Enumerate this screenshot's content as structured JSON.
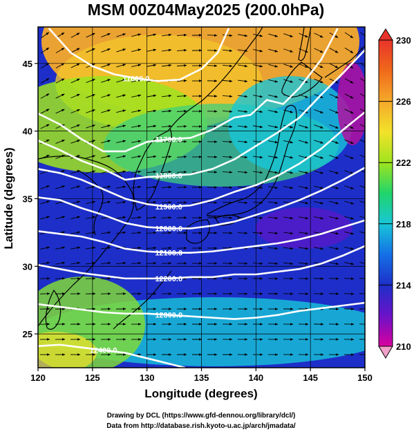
{
  "chart_data": {
    "type": "heatmap",
    "title": "MSM 00Z04May2025 (200.0hPa)",
    "xlabel": "Longitude (degrees)",
    "ylabel": "Latitude  (degrees)",
    "xlim": [
      120,
      150
    ],
    "ylim": [
      22.5,
      47.7
    ],
    "x_ticks": [
      120,
      125,
      130,
      135,
      140,
      145,
      150
    ],
    "y_ticks": [
      25,
      30,
      35,
      40,
      45
    ],
    "colorbar": {
      "range": [
        210,
        230
      ],
      "ticks": [
        210,
        214,
        218,
        222,
        226,
        230
      ],
      "colors": [
        "#d9009f",
        "#6b12c8",
        "#1d2fc8",
        "#1470e6",
        "#18c6d8",
        "#1fd56a",
        "#9fe41e",
        "#f2e22a",
        "#f5a92a",
        "#f06a1a",
        "#e8342a"
      ]
    },
    "contours": [
      {
        "label": "11600.0",
        "points": [
          [
            121,
            47.6
          ],
          [
            123,
            45.8
          ],
          [
            125,
            44.8
          ],
          [
            127,
            44.2
          ],
          [
            129,
            43.9
          ],
          [
            131,
            43.7
          ],
          [
            133,
            43.8
          ],
          [
            135,
            44.6
          ],
          [
            136.5,
            45.8
          ],
          [
            137.5,
            47.6
          ]
        ]
      },
      {
        "label": "11700.0",
        "points": [
          [
            120,
            41.3
          ],
          [
            122,
            40.5
          ],
          [
            124,
            39.4
          ],
          [
            126,
            38.5
          ],
          [
            128,
            38.5
          ],
          [
            130,
            39.2
          ],
          [
            132,
            39.4
          ],
          [
            134,
            39.5
          ],
          [
            136,
            40.1
          ],
          [
            138,
            41.0
          ],
          [
            139.5,
            41.2
          ],
          [
            141,
            42.3
          ],
          [
            142.5,
            42.0
          ],
          [
            144,
            43.2
          ],
          [
            146,
            45.3
          ],
          [
            147.5,
            47.6
          ]
        ]
      },
      {
        "label": "11800.0",
        "points": [
          [
            120,
            39.3
          ],
          [
            122,
            38.6
          ],
          [
            124,
            37.8
          ],
          [
            126,
            37.2
          ],
          [
            128,
            36.4
          ],
          [
            130,
            36.6
          ],
          [
            132,
            36.7
          ],
          [
            134,
            36.8
          ],
          [
            136,
            37.2
          ],
          [
            138,
            37.9
          ],
          [
            140,
            38.9
          ],
          [
            142,
            39.9
          ],
          [
            144,
            41.0
          ],
          [
            146,
            42.7
          ],
          [
            148,
            44.3
          ],
          [
            150,
            46.0
          ]
        ]
      },
      {
        "label": "11900.0",
        "points": [
          [
            120,
            37.2
          ],
          [
            122,
            36.9
          ],
          [
            124,
            36.4
          ],
          [
            126,
            35.7
          ],
          [
            128,
            35.0
          ],
          [
            130,
            34.6
          ],
          [
            132,
            34.4
          ],
          [
            134,
            34.5
          ],
          [
            136,
            34.9
          ],
          [
            138,
            35.5
          ],
          [
            140,
            36.0
          ],
          [
            142,
            36.7
          ],
          [
            144,
            37.6
          ],
          [
            146,
            38.7
          ],
          [
            148,
            40.1
          ],
          [
            150,
            41.4
          ]
        ]
      },
      {
        "label": "12000.0",
        "points": [
          [
            120,
            35.1
          ],
          [
            122,
            34.9
          ],
          [
            124,
            34.3
          ],
          [
            126,
            33.8
          ],
          [
            128,
            33.2
          ],
          [
            130,
            32.9
          ],
          [
            132,
            32.8
          ],
          [
            134,
            32.8
          ],
          [
            136,
            33.0
          ],
          [
            138,
            33.3
          ],
          [
            140,
            33.8
          ],
          [
            142,
            34.3
          ],
          [
            144,
            34.9
          ],
          [
            146,
            35.6
          ],
          [
            148,
            36.4
          ],
          [
            150,
            37.3
          ]
        ]
      },
      {
        "label": "12100.0",
        "points": [
          [
            120,
            32.6
          ],
          [
            122,
            32.4
          ],
          [
            124,
            32.2
          ],
          [
            126,
            31.8
          ],
          [
            128,
            31.3
          ],
          [
            130,
            31.1
          ],
          [
            132,
            31.0
          ],
          [
            134,
            31.0
          ],
          [
            136,
            31.1
          ],
          [
            138,
            31.3
          ],
          [
            140,
            31.5
          ],
          [
            142,
            31.7
          ],
          [
            144,
            32.0
          ],
          [
            146,
            32.4
          ],
          [
            148,
            32.9
          ],
          [
            150,
            33.4
          ]
        ]
      },
      {
        "label": "12200.0",
        "points": [
          [
            120,
            30.1
          ],
          [
            122,
            29.8
          ],
          [
            124,
            29.5
          ],
          [
            126,
            29.3
          ],
          [
            128,
            29.1
          ],
          [
            130,
            29.1
          ],
          [
            132,
            29.1
          ],
          [
            134,
            29.2
          ],
          [
            136,
            29.2
          ],
          [
            138,
            29.4
          ],
          [
            140,
            29.4
          ],
          [
            142,
            29.6
          ],
          [
            144,
            29.8
          ],
          [
            146,
            30.2
          ],
          [
            148,
            30.8
          ],
          [
            150,
            31.5
          ]
        ]
      },
      {
        "label": "12300.0",
        "points": [
          [
            120,
            27.2
          ],
          [
            122,
            27.0
          ],
          [
            124,
            26.8
          ],
          [
            126,
            26.6
          ],
          [
            128,
            26.5
          ],
          [
            130,
            26.5
          ],
          [
            132,
            26.4
          ],
          [
            134,
            26.3
          ],
          [
            136,
            26.2
          ],
          [
            138,
            26.1
          ],
          [
            140,
            26.2
          ],
          [
            142,
            26.4
          ],
          [
            144,
            26.7
          ],
          [
            146,
            26.9
          ],
          [
            148,
            27.1
          ],
          [
            150,
            27.3
          ]
        ]
      },
      {
        "label": "12400.0",
        "points": [
          [
            120,
            24.1
          ],
          [
            122,
            24.2
          ],
          [
            124,
            24.0
          ],
          [
            126,
            23.8
          ],
          [
            128,
            23.6
          ],
          [
            130,
            23.2
          ],
          [
            132,
            22.8
          ],
          [
            133.5,
            22.5
          ]
        ]
      }
    ]
  },
  "credits": {
    "line1": "Drawing by DCL (https://www.gfd-dennou.org/library/dcl/)",
    "line2": "Data from http://database.rish.kyoto-u.ac.jp/arch/jmadata/"
  }
}
